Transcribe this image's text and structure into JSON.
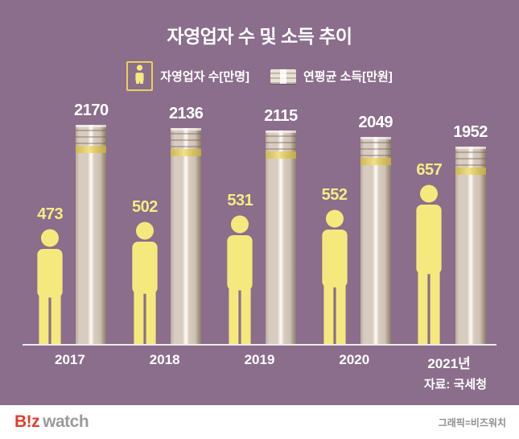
{
  "title": "자영업자 수 및 소득 추이",
  "legend": {
    "person_label": "자영업자 수[만명]",
    "money_label": "연평균 소득[만원]"
  },
  "chart_data": {
    "type": "bar",
    "title": "자영업자 수 및 소득 추이",
    "categories": [
      "2017",
      "2018",
      "2019",
      "2020",
      "2021년"
    ],
    "series": [
      {
        "name": "자영업자 수[만명]",
        "color": "#f6ec86",
        "values": [
          473,
          502,
          531,
          552,
          657
        ]
      },
      {
        "name": "연평균 소득[만원]",
        "color": "#d8ccc0",
        "values": [
          2170,
          2136,
          2115,
          2049,
          1952
        ]
      }
    ],
    "legend_position": "top",
    "grid": false,
    "baseline": 0,
    "source": "자료: 국세청"
  },
  "source_note": "자료: 국세청",
  "footer": {
    "logo_b": "B!z",
    "logo_watch": "watch",
    "credit": "그래픽=비즈워치"
  },
  "colors": {
    "background": "#8b6d8c",
    "person": "#f5e97d",
    "person_value_text": "#f6ec86",
    "money_value_text": "#ffffff",
    "money_bar": "#d8ccc0",
    "gold_band": "#e6cf6a",
    "logo_red": "#e23c2e",
    "logo_gray": "#9b9b9b"
  }
}
